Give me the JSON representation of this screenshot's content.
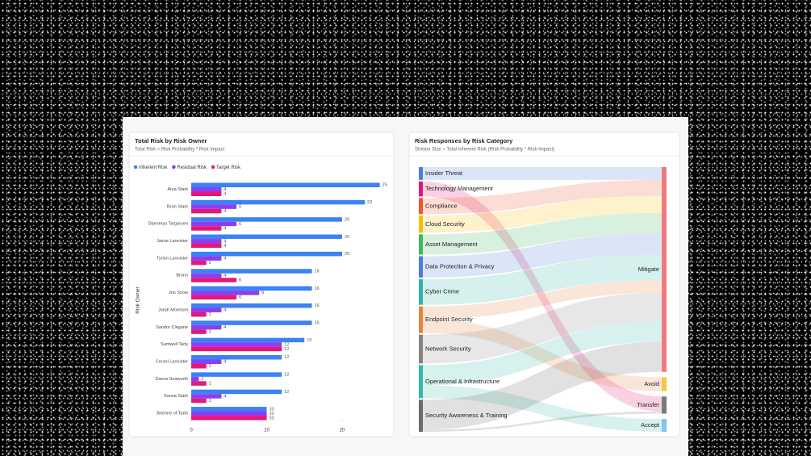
{
  "chart_data": [
    {
      "type": "bar",
      "orientation": "horizontal",
      "title": "Total Risk by Risk Owner",
      "subtitle": "Total Risk = Risk Probability * Risk Impact",
      "y_label": "Risk Owner",
      "categories": [
        "Arya Stark",
        "Bran Stark",
        "Daenerys Targaryen",
        "Jaime Lannister",
        "Tyrion Lannister",
        "Bronn",
        "Jon Snow",
        "Jorah Mormont",
        "Sandor Clegane",
        "Samwell Tarly",
        "Cersei Lannister",
        "Davos Seaworth",
        "Sansa Stark",
        "Brienne of Tarth"
      ],
      "series": [
        {
          "name": "Inherent Risk",
          "color": "#3b82f6",
          "values": [
            25,
            23,
            20,
            20,
            20,
            16,
            16,
            16,
            16,
            15,
            12,
            12,
            12,
            10
          ]
        },
        {
          "name": "Residual Risk",
          "color": "#8b3ff0",
          "values": [
            4,
            6,
            6,
            4,
            4,
            4,
            9,
            4,
            4,
            12,
            4,
            1,
            4,
            10
          ]
        },
        {
          "name": "Target Risk",
          "color": "#e5177b",
          "values": [
            4,
            4,
            4,
            4,
            2,
            6,
            6,
            2,
            2,
            12,
            2,
            2,
            2,
            10
          ]
        }
      ],
      "xlim": [
        0,
        26
      ],
      "xticks": [
        0,
        10,
        20
      ],
      "legend": "top-left"
    },
    {
      "type": "sankey",
      "title": "Risk Responses by Risk Category",
      "subtitle": "Stream Size = Total Inherent Risk (Risk Probability * Risk Impact)",
      "nodes": [
        {
          "name": "Insider Threat",
          "color": "#4a7fd6"
        },
        {
          "name": "Technology Management",
          "color": "#e0196f"
        },
        {
          "name": "Compliance",
          "color": "#f0552b"
        },
        {
          "name": "Cloud Security",
          "color": "#f5c000"
        },
        {
          "name": "Asset Management",
          "color": "#3dbb5a"
        },
        {
          "name": "Data Protection & Privacy",
          "color": "#4a7fd6"
        },
        {
          "name": "Cyber Crime",
          "color": "#2fb5a5"
        },
        {
          "name": "Endpoint Security",
          "color": "#e8843a"
        },
        {
          "name": "Network Security",
          "color": "#858585"
        },
        {
          "name": "Operational & Infrastructure",
          "color": "#35b8a8"
        },
        {
          "name": "Security Awareness & Training",
          "color": "#6b6b6b"
        },
        {
          "name": "Mitigate",
          "color": "#f07a80"
        },
        {
          "name": "Avoid",
          "color": "#f2c94c"
        },
        {
          "name": "Transfer",
          "color": "#7a7a7a"
        },
        {
          "name": "Accept",
          "color": "#7fc8e8"
        }
      ],
      "links": [
        {
          "source": "Insider Threat",
          "target": "Mitigate",
          "value": 12
        },
        {
          "source": "Technology Management",
          "target": "Transfer",
          "value": 14
        },
        {
          "source": "Compliance",
          "target": "Mitigate",
          "value": 15
        },
        {
          "source": "Cloud Security",
          "target": "Mitigate",
          "value": 16
        },
        {
          "source": "Asset Management",
          "target": "Mitigate",
          "value": 19
        },
        {
          "source": "Data Protection & Privacy",
          "target": "Mitigate",
          "value": 20
        },
        {
          "source": "Cyber Crime",
          "target": "Mitigate",
          "value": 24
        },
        {
          "source": "Endpoint Security",
          "target": "Mitigate",
          "value": 12
        },
        {
          "source": "Endpoint Security",
          "target": "Avoid",
          "value": 13
        },
        {
          "source": "Network Security",
          "target": "Mitigate",
          "value": 27
        },
        {
          "source": "Operational & Infrastructure",
          "target": "Mitigate",
          "value": 19
        },
        {
          "source": "Operational & Infrastructure",
          "target": "Accept",
          "value": 12
        },
        {
          "source": "Security Awareness & Training",
          "target": "Mitigate",
          "value": 28
        },
        {
          "source": "Security Awareness & Training",
          "target": "Transfer",
          "value": 2
        }
      ]
    }
  ]
}
